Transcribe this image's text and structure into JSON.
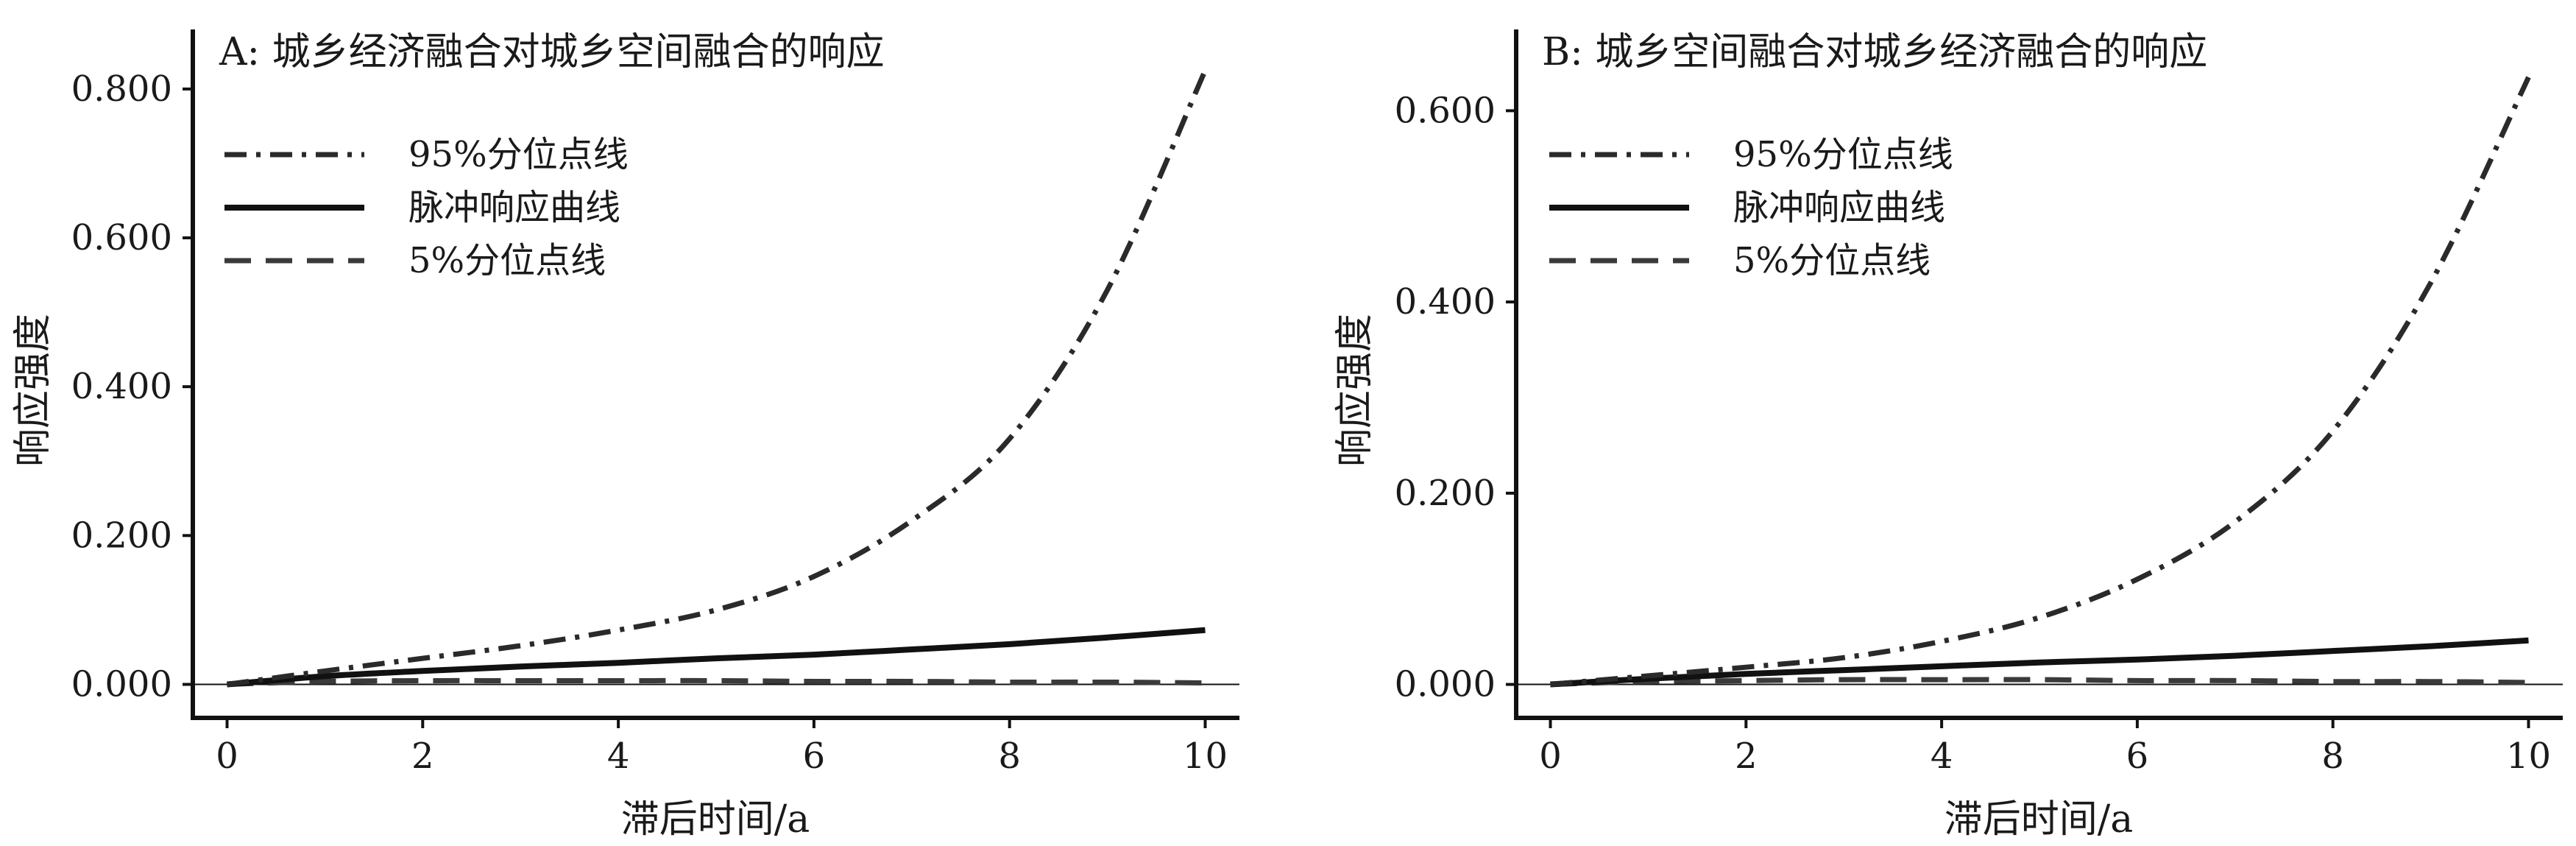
{
  "chart_data": [
    {
      "type": "line",
      "title": "A: 城乡经济融合对城乡空间融合的响应",
      "xlabel": "滞后时间/a",
      "ylabel": "响应强度",
      "xlim": [
        -0.35,
        10.35
      ],
      "ylim": [
        -0.045,
        0.88
      ],
      "xticks": [
        0,
        2,
        4,
        6,
        8,
        10
      ],
      "xtick_labels": [
        "0",
        "2",
        "4",
        "6",
        "8",
        "10"
      ],
      "yticks": [
        0,
        0.2,
        0.4,
        0.6,
        0.8
      ],
      "ytick_labels": [
        "0.000",
        "0.200",
        "0.400",
        "0.600",
        "0.800"
      ],
      "zero_line": true,
      "grid": false,
      "legend_position": "top-left",
      "x": [
        0,
        1,
        2,
        3,
        4,
        5,
        6,
        7,
        8,
        9,
        10
      ],
      "series": [
        {
          "name": "95%分位点线",
          "style": "dashdot",
          "color": "#2a2a2a",
          "values": [
            0.0,
            0.018,
            0.035,
            0.052,
            0.073,
            0.1,
            0.145,
            0.22,
            0.33,
            0.53,
            0.825
          ]
        },
        {
          "name": "脉冲响应曲线",
          "style": "solid",
          "color": "#111111",
          "values": [
            0.0,
            0.011,
            0.018,
            0.024,
            0.029,
            0.035,
            0.04,
            0.047,
            0.054,
            0.063,
            0.073
          ]
        },
        {
          "name": "5%分位点线",
          "style": "dashed",
          "color": "#3a3a3a",
          "values": [
            0.0,
            0.004,
            0.005,
            0.005,
            0.005,
            0.005,
            0.004,
            0.004,
            0.003,
            0.003,
            0.002
          ]
        }
      ]
    },
    {
      "type": "line",
      "title": "B: 城乡空间融合对城乡经济融合的响应",
      "xlabel": "滞后时间/a",
      "ylabel": "响应强度",
      "xlim": [
        -0.35,
        10.35
      ],
      "ylim": [
        -0.035,
        0.685
      ],
      "xticks": [
        0,
        2,
        4,
        6,
        8,
        10
      ],
      "xtick_labels": [
        "0",
        "2",
        "4",
        "6",
        "8",
        "10"
      ],
      "yticks": [
        0,
        0.2,
        0.4,
        0.6
      ],
      "ytick_labels": [
        "0.000",
        "0.200",
        "0.400",
        "0.600"
      ],
      "zero_line": true,
      "grid": false,
      "legend_position": "top-left",
      "x": [
        0,
        1,
        2,
        3,
        4,
        5,
        6,
        7,
        8,
        9,
        10
      ],
      "series": [
        {
          "name": "95%分位点线",
          "style": "dashdot",
          "color": "#2a2a2a",
          "values": [
            0.0,
            0.009,
            0.018,
            0.028,
            0.045,
            0.07,
            0.11,
            0.17,
            0.265,
            0.42,
            0.635
          ]
        },
        {
          "name": "脉冲响应曲线",
          "style": "solid",
          "color": "#111111",
          "values": [
            0.0,
            0.006,
            0.011,
            0.015,
            0.019,
            0.023,
            0.026,
            0.03,
            0.035,
            0.04,
            0.046
          ]
        },
        {
          "name": "5%分位点线",
          "style": "dashed",
          "color": "#3a3a3a",
          "values": [
            0.0,
            0.003,
            0.004,
            0.005,
            0.005,
            0.005,
            0.004,
            0.004,
            0.003,
            0.003,
            0.002
          ]
        }
      ]
    }
  ]
}
